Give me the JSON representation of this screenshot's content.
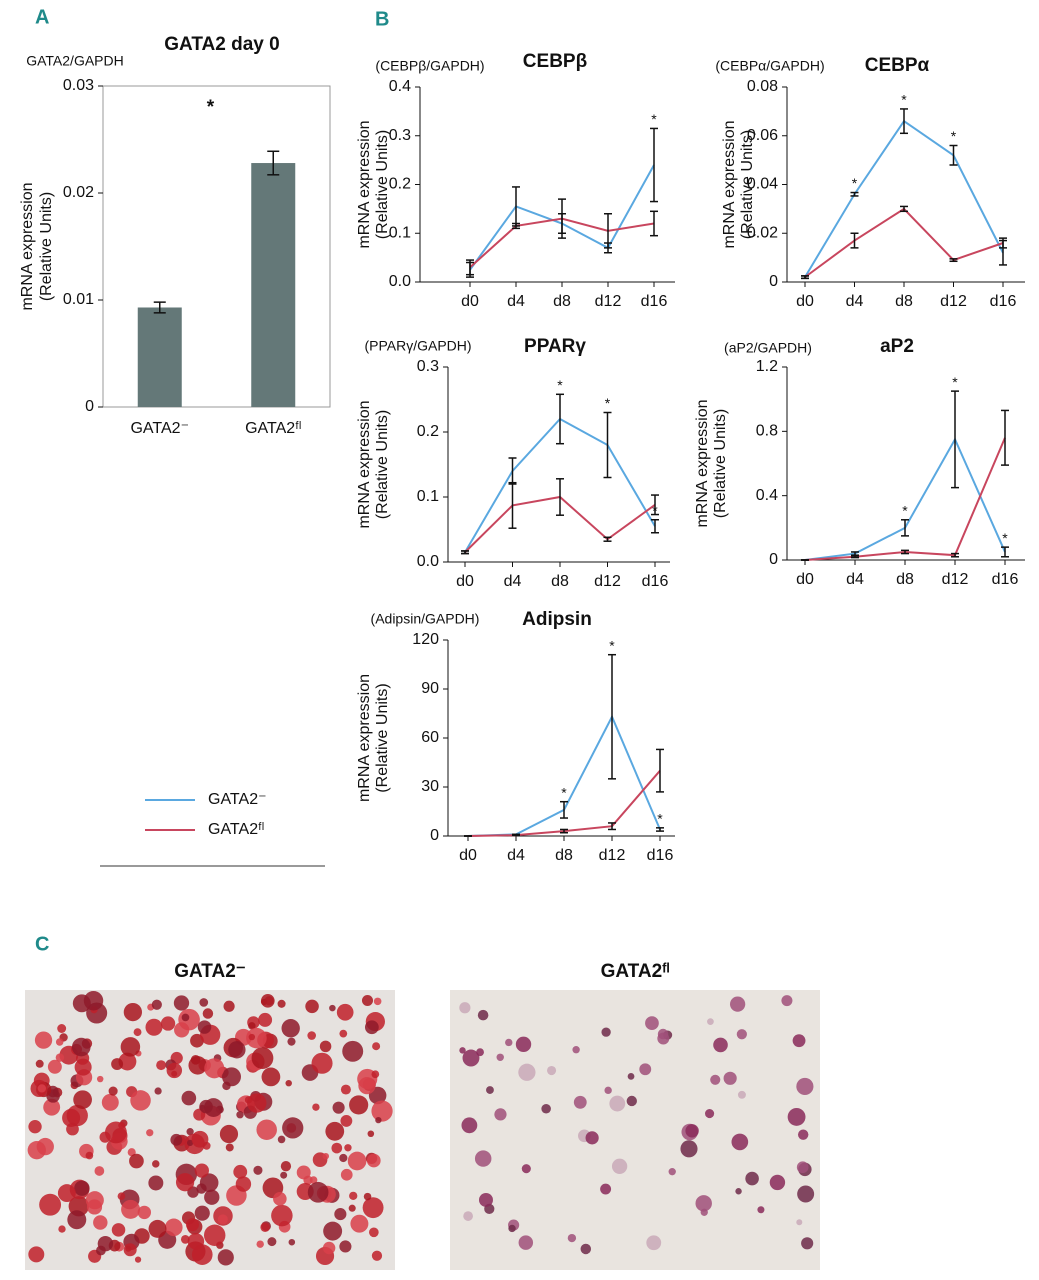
{
  "legend": {
    "entries": [
      {
        "name": "GATA2⁻",
        "color": "#5aa8e0"
      },
      {
        "name": "GATA2ᶠˡ",
        "color": "#c8465e"
      }
    ]
  },
  "chart_data": [
    {
      "type": "bar",
      "panel": "A",
      "title": "GATA2 day 0",
      "unit_label": "GATA2/GAPDH",
      "y_label": [
        "mRNA expression",
        "(Relative Units)"
      ],
      "categories": [
        "GATA2⁻",
        "GATA2ᶠˡ"
      ],
      "values": [
        0.0093,
        0.0228
      ],
      "errors": [
        0.0005,
        0.0011
      ],
      "color": "#647878",
      "annotation": "*",
      "ylim": [
        0,
        0.03
      ],
      "yticks": [
        0,
        0.01,
        0.02,
        0.03
      ]
    },
    {
      "type": "line",
      "panel": "B",
      "title": "CEBPβ",
      "unit_label": "(CEBPβ/GAPDH)",
      "y_label": [
        "mRNA expression",
        "(Relative Units)"
      ],
      "categories": [
        "d0",
        "d4",
        "d8",
        "d12",
        "d16"
      ],
      "series": [
        {
          "values": [
            0.025,
            0.155,
            0.12,
            0.07,
            0.24
          ],
          "errors": [
            0.015,
            0.04,
            0.02,
            0.01,
            0.075
          ],
          "annotations": [
            null,
            null,
            null,
            null,
            "*"
          ]
        },
        {
          "values": [
            0.03,
            0.115,
            0.13,
            0.105,
            0.12
          ],
          "errors": [
            0.015,
            0.005,
            0.04,
            0.035,
            0.025
          ],
          "annotations": [
            null,
            null,
            null,
            null,
            null
          ]
        }
      ],
      "ylim": [
        0,
        0.4
      ],
      "yticks": [
        {
          "value": 0,
          "label": "0.0"
        },
        0.1,
        0.2,
        0.3,
        0.4
      ]
    },
    {
      "type": "line",
      "title": "CEBPα",
      "unit_label": "(CEBPα/GAPDH)",
      "y_label": [
        "mRNA expression",
        "(Relative Units)"
      ],
      "categories": [
        "d0",
        "d4",
        "d8",
        "d12",
        "d16"
      ],
      "series": [
        {
          "values": [
            0.002,
            0.036,
            0.066,
            0.052,
            0.012
          ],
          "errors": [
            0.0005,
            0.0007,
            0.005,
            0.004,
            0.005
          ],
          "annotations": [
            null,
            "*",
            "*",
            "*",
            null
          ]
        },
        {
          "values": [
            0.002,
            0.017,
            0.03,
            0.009,
            0.016
          ],
          "errors": [
            0.0005,
            0.003,
            0.001,
            0.0005,
            0.002
          ],
          "annotations": [
            null,
            null,
            null,
            null,
            null
          ]
        }
      ],
      "ylim": [
        0,
        0.08
      ],
      "yticks": [
        0,
        0.02,
        0.04,
        0.06,
        0.08
      ]
    },
    {
      "type": "line",
      "title": "PPARγ",
      "unit_label": "(PPARγ/GAPDH)",
      "y_label": [
        "mRNA expression",
        "(Relative Units)"
      ],
      "categories": [
        "d0",
        "d4",
        "d8",
        "d12",
        "d16"
      ],
      "series": [
        {
          "values": [
            0.015,
            0.14,
            0.22,
            0.18,
            0.055
          ],
          "errors": [
            0.002,
            0.02,
            0.038,
            0.05,
            0.01
          ],
          "annotations": [
            null,
            null,
            "*",
            "*",
            "*"
          ]
        },
        {
          "values": [
            0.015,
            0.087,
            0.1,
            0.035,
            0.088
          ],
          "errors": [
            0.002,
            0.035,
            0.028,
            0.003,
            0.015
          ],
          "annotations": [
            null,
            null,
            null,
            null,
            null
          ]
        }
      ],
      "ylim": [
        0,
        0.3
      ],
      "yticks": [
        {
          "value": 0,
          "label": "0.0"
        },
        0.1,
        0.2,
        0.3
      ]
    },
    {
      "type": "line",
      "title": "aP2",
      "unit_label": "(aP2/GAPDH)",
      "y_label": [
        "mRNA expression",
        "(Relative Units)"
      ],
      "categories": [
        "d0",
        "d4",
        "d8",
        "d12",
        "d16"
      ],
      "series": [
        {
          "values": [
            0,
            0.04,
            0.2,
            0.75,
            0.05
          ],
          "errors": [
            0,
            0.01,
            0.05,
            0.3,
            0.03
          ],
          "annotations": [
            null,
            null,
            "*",
            "*",
            "*"
          ]
        },
        {
          "values": [
            0,
            0.02,
            0.05,
            0.03,
            0.76
          ],
          "errors": [
            0,
            0.005,
            0.01,
            0.01,
            0.17
          ],
          "annotations": [
            null,
            null,
            null,
            null,
            null
          ]
        }
      ],
      "ylim": [
        0,
        1.2
      ],
      "yticks": [
        0,
        0.4,
        0.8,
        1.2
      ]
    },
    {
      "type": "line",
      "title": "Adipsin",
      "unit_label": "(Adipsin/GAPDH)",
      "y_label": [
        "mRNA expression",
        "(Relative Units)"
      ],
      "categories": [
        "d0",
        "d4",
        "d8",
        "d12",
        "d16"
      ],
      "series": [
        {
          "values": [
            0,
            1,
            16,
            73,
            4
          ],
          "errors": [
            0,
            0,
            5,
            38,
            1
          ],
          "annotations": [
            null,
            null,
            "*",
            "*",
            "*"
          ]
        },
        {
          "values": [
            0,
            0.5,
            3,
            6,
            40
          ],
          "errors": [
            0,
            0,
            1,
            2,
            13
          ],
          "annotations": [
            null,
            null,
            null,
            null,
            null
          ]
        }
      ],
      "ylim": [
        0,
        120
      ],
      "yticks": [
        0,
        30,
        60,
        90,
        120
      ]
    }
  ],
  "panel_c": {
    "label": "C",
    "images": [
      {
        "caption": "GATA2⁻"
      },
      {
        "caption": "GATA2ᶠˡ"
      }
    ]
  }
}
